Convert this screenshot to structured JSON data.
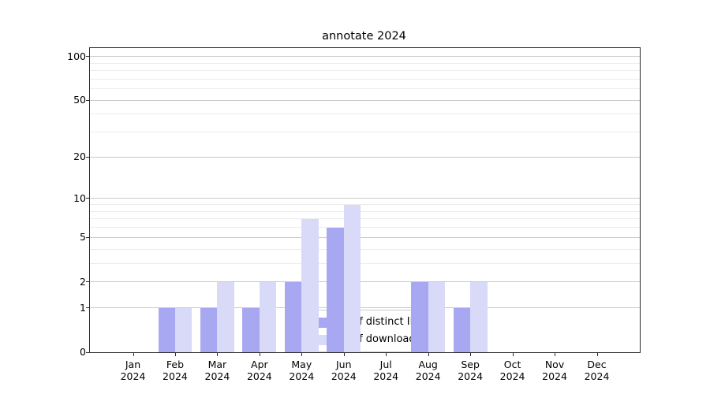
{
  "title": "annotate 2024",
  "chart_data": {
    "type": "bar",
    "title": "annotate 2024",
    "categories": [
      "Jan",
      "Feb",
      "Mar",
      "Apr",
      "May",
      "Jun",
      "Jul",
      "Aug",
      "Sep",
      "Oct",
      "Nov",
      "Dec"
    ],
    "category_year": "2024",
    "series": [
      {
        "name": "Nb of distinct IPs",
        "color": "#a8a8f2",
        "values": [
          0,
          1,
          1,
          1,
          2,
          6,
          0,
          2,
          1,
          0,
          0,
          0
        ]
      },
      {
        "name": "Nb of downloads",
        "color": "#d9d9f8",
        "values": [
          0,
          1,
          2,
          2,
          7,
          9,
          0,
          2,
          2,
          0,
          0,
          0
        ]
      }
    ],
    "xlabel": "",
    "ylabel": "",
    "yscale": "log1p",
    "ylim": [
      0,
      114
    ],
    "yticks": [
      0,
      1,
      2,
      5,
      10,
      20,
      50,
      100
    ],
    "yticks_minor": [
      3,
      4,
      6,
      7,
      8,
      9,
      30,
      40,
      60,
      70,
      80,
      90
    ],
    "grid": true,
    "legend_position": "lower center",
    "colors": {
      "grid_major": "#c9c9c9",
      "grid_minor": "#ececec",
      "spine": "#2b2b2b",
      "text": "#000000",
      "background": "#ffffff"
    }
  }
}
